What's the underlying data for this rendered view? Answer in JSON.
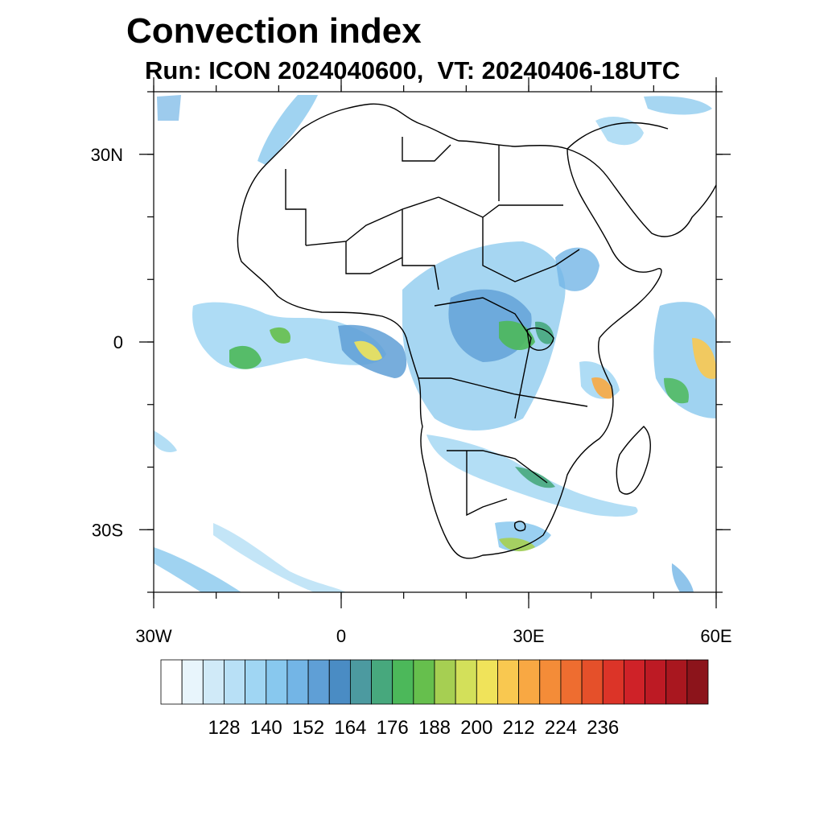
{
  "title": "Convection index",
  "subtitle": "Run: ICON 2024040600,  VT: 20240406-18UTC",
  "map": {
    "lon_range": [
      -30,
      60
    ],
    "lat_range": [
      -40,
      40
    ],
    "lat_ticks": [
      {
        "value": 30,
        "label": "30N"
      },
      {
        "value": 0,
        "label": "0"
      },
      {
        "value": -30,
        "label": "30S"
      }
    ],
    "lon_ticks": [
      {
        "value": -30,
        "label": "30W"
      },
      {
        "value": 0,
        "label": "0"
      },
      {
        "value": 30,
        "label": "30E"
      },
      {
        "value": 60,
        "label": "60E"
      }
    ],
    "coast_color": "#000000"
  },
  "colorbar": {
    "colors": [
      "#ffffff",
      "#e8f5fc",
      "#d0eaf8",
      "#b8e0f6",
      "#a0d6f3",
      "#88c8ee",
      "#73b5e6",
      "#5f9fd6",
      "#4a8cc4",
      "#4c9aa0",
      "#47a87d",
      "#4cb85a",
      "#66bf4d",
      "#a6cf52",
      "#d3e05a",
      "#f0e35a",
      "#f9c850",
      "#f8a843",
      "#f48c38",
      "#ee6d30",
      "#e5502a",
      "#dc3428",
      "#cf2228",
      "#bd1a24",
      "#a9171f",
      "#8c141b"
    ],
    "labels": [
      "128",
      "140",
      "152",
      "164",
      "176",
      "188",
      "200",
      "212",
      "224",
      "236"
    ]
  }
}
